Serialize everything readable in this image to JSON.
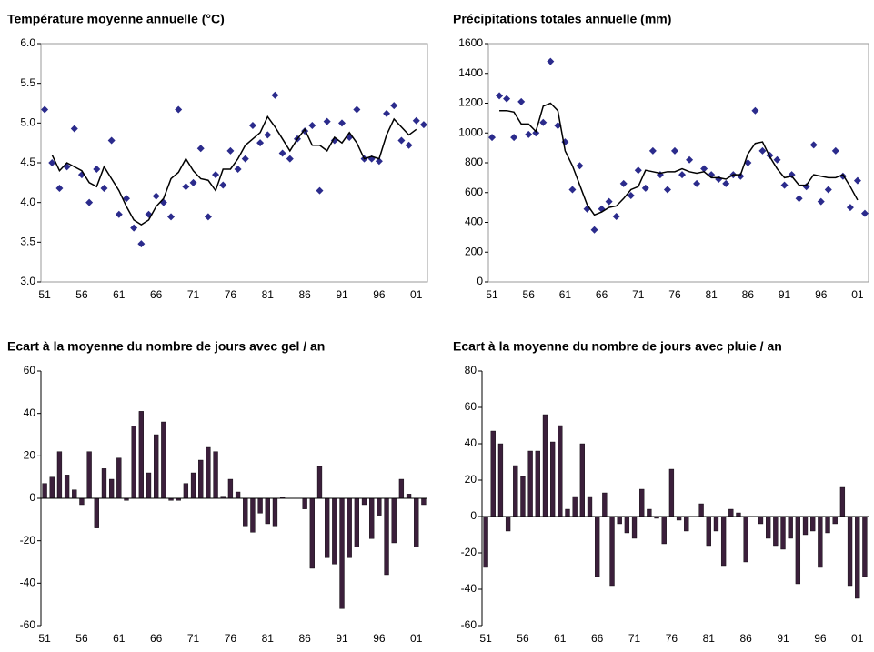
{
  "chart_data": [
    {
      "type": "line",
      "title": "Température moyenne annuelle (°C)",
      "categories": [
        "51",
        null,
        null,
        null,
        null,
        "56",
        null,
        null,
        null,
        null,
        "61",
        null,
        null,
        null,
        null,
        "66",
        null,
        null,
        null,
        null,
        "71",
        null,
        null,
        null,
        null,
        "76",
        null,
        null,
        null,
        null,
        "81",
        null,
        null,
        null,
        null,
        "86",
        null,
        null,
        null,
        null,
        "91",
        null,
        null,
        null,
        null,
        "96",
        null,
        null,
        null,
        null,
        "01",
        null
      ],
      "series": [
        {
          "style": "points",
          "color": "#2b2b8c",
          "values": [
            5.17,
            4.5,
            4.18,
            4.45,
            4.93,
            4.35,
            4.0,
            4.42,
            4.18,
            4.78,
            3.85,
            4.05,
            3.68,
            3.48,
            3.85,
            4.08,
            4.0,
            3.82,
            5.17,
            4.2,
            4.25,
            4.68,
            3.82,
            4.35,
            4.22,
            4.65,
            4.42,
            4.55,
            4.97,
            4.75,
            4.85,
            5.35,
            4.62,
            4.55,
            4.8,
            4.9,
            4.97,
            4.15,
            5.02,
            4.78,
            5.0,
            4.82,
            5.17,
            4.55,
            4.55,
            4.52,
            5.12,
            5.22,
            4.78,
            4.72,
            5.03,
            4.98
          ]
        },
        {
          "style": "line",
          "color": "#000000",
          "values": [
            null,
            4.6,
            4.4,
            4.5,
            4.45,
            4.4,
            4.25,
            4.2,
            4.45,
            4.3,
            4.15,
            3.95,
            3.78,
            3.72,
            3.78,
            3.95,
            4.05,
            4.3,
            4.38,
            4.55,
            4.4,
            4.3,
            4.28,
            4.15,
            4.42,
            4.42,
            4.55,
            4.72,
            4.8,
            4.88,
            5.08,
            4.95,
            4.8,
            4.65,
            4.8,
            4.92,
            4.72,
            4.72,
            4.65,
            4.82,
            4.75,
            4.88,
            4.75,
            4.55,
            4.58,
            4.55,
            4.85,
            5.05,
            4.95,
            4.85,
            4.92,
            null
          ]
        }
      ],
      "ylim": [
        3,
        6
      ],
      "yticks": [
        {
          "value": 3,
          "label": "3.0"
        },
        3.5,
        {
          "value": 4,
          "label": "4.0"
        },
        4.5,
        {
          "value": 5,
          "label": "5.0"
        },
        5.5,
        {
          "value": 6,
          "label": "6.0"
        }
      ],
      "frame": true
    },
    {
      "type": "line",
      "title": "Précipitations totales annuelle (mm)",
      "categories": [
        "51",
        null,
        null,
        null,
        null,
        "56",
        null,
        null,
        null,
        null,
        "61",
        null,
        null,
        null,
        null,
        "66",
        null,
        null,
        null,
        null,
        "71",
        null,
        null,
        null,
        null,
        "76",
        null,
        null,
        null,
        null,
        "81",
        null,
        null,
        null,
        null,
        "86",
        null,
        null,
        null,
        null,
        "91",
        null,
        null,
        null,
        null,
        "96",
        null,
        null,
        null,
        null,
        "01",
        null
      ],
      "series": [
        {
          "style": "points",
          "color": "#2b2b8c",
          "values": [
            970,
            1250,
            1230,
            970,
            1210,
            990,
            1000,
            1070,
            1480,
            1050,
            940,
            620,
            780,
            490,
            350,
            490,
            540,
            440,
            660,
            580,
            750,
            630,
            880,
            720,
            620,
            880,
            720,
            820,
            660,
            760,
            720,
            690,
            660,
            720,
            710,
            800,
            1150,
            880,
            850,
            820,
            650,
            720,
            560,
            640,
            920,
            540,
            620,
            880,
            710,
            500,
            680,
            460
          ]
        },
        {
          "style": "line",
          "color": "#000000",
          "values": [
            null,
            1150,
            1150,
            1140,
            1060,
            1060,
            1010,
            1180,
            1200,
            1150,
            880,
            780,
            650,
            520,
            450,
            470,
            500,
            510,
            560,
            620,
            640,
            750,
            740,
            730,
            740,
            740,
            760,
            740,
            730,
            740,
            700,
            700,
            690,
            720,
            720,
            860,
            930,
            940,
            840,
            760,
            700,
            710,
            650,
            650,
            720,
            710,
            700,
            700,
            720,
            640,
            550,
            null
          ]
        }
      ],
      "ylim": [
        0,
        1600
      ],
      "yticks": [
        0,
        200,
        400,
        600,
        800,
        1000,
        1200,
        1400,
        1600
      ],
      "frame": true
    },
    {
      "type": "bar",
      "title": "Ecart à la moyenne du nombre de jours avec gel / an",
      "categories": [
        "51",
        null,
        null,
        null,
        null,
        "56",
        null,
        null,
        null,
        null,
        "61",
        null,
        null,
        null,
        null,
        "66",
        null,
        null,
        null,
        null,
        "71",
        null,
        null,
        null,
        null,
        "76",
        null,
        null,
        null,
        null,
        "81",
        null,
        null,
        null,
        null,
        "86",
        null,
        null,
        null,
        null,
        "91",
        null,
        null,
        null,
        null,
        "96",
        null,
        null,
        null,
        null,
        "01",
        null
      ],
      "color": "#3b1f3b",
      "values": [
        7,
        10,
        22,
        11,
        4,
        -3,
        22,
        -14,
        14,
        9,
        19,
        -1,
        34,
        41,
        12,
        30,
        36,
        -1,
        -1,
        7,
        12,
        18,
        24,
        22,
        1,
        9,
        3,
        -13,
        -16,
        -7,
        -12,
        -13,
        0.5,
        0,
        0,
        -5,
        -33,
        15,
        -28,
        -31,
        -52,
        -28,
        -23,
        -3,
        -19,
        -8,
        -36,
        -21,
        9,
        2,
        -23,
        -3
      ],
      "ylim": [
        -60,
        60
      ],
      "yticks": [
        -60,
        -40,
        -20,
        0,
        20,
        40,
        60
      ],
      "frame": false
    },
    {
      "type": "bar",
      "title": "Ecart à la moyenne du nombre de jours avec pluie / an",
      "categories": [
        "51",
        null,
        null,
        null,
        null,
        "56",
        null,
        null,
        null,
        null,
        "61",
        null,
        null,
        null,
        null,
        "66",
        null,
        null,
        null,
        null,
        "71",
        null,
        null,
        null,
        null,
        "76",
        null,
        null,
        null,
        null,
        "81",
        null,
        null,
        null,
        null,
        "86",
        null,
        null,
        null,
        null,
        "91",
        null,
        null,
        null,
        null,
        "96",
        null,
        null,
        null,
        null,
        "01",
        null
      ],
      "color": "#3b1f3b",
      "values": [
        -28,
        47,
        40,
        -8,
        28,
        22,
        36,
        36,
        56,
        41,
        50,
        4,
        11,
        40,
        11,
        -33,
        13,
        -38,
        -4,
        -9,
        -12,
        15,
        4,
        -1,
        -15,
        26,
        -2,
        -8,
        0,
        7,
        -16,
        -8,
        -27,
        4,
        2,
        -25,
        0,
        -4,
        -12,
        -16,
        -18,
        -12,
        -37,
        -10,
        -8,
        -28,
        -9,
        -4,
        16,
        -38,
        -45,
        -33
      ],
      "ylim": [
        -60,
        80
      ],
      "yticks": [
        -60,
        -40,
        -20,
        0,
        20,
        40,
        60,
        80
      ],
      "frame": false
    }
  ]
}
